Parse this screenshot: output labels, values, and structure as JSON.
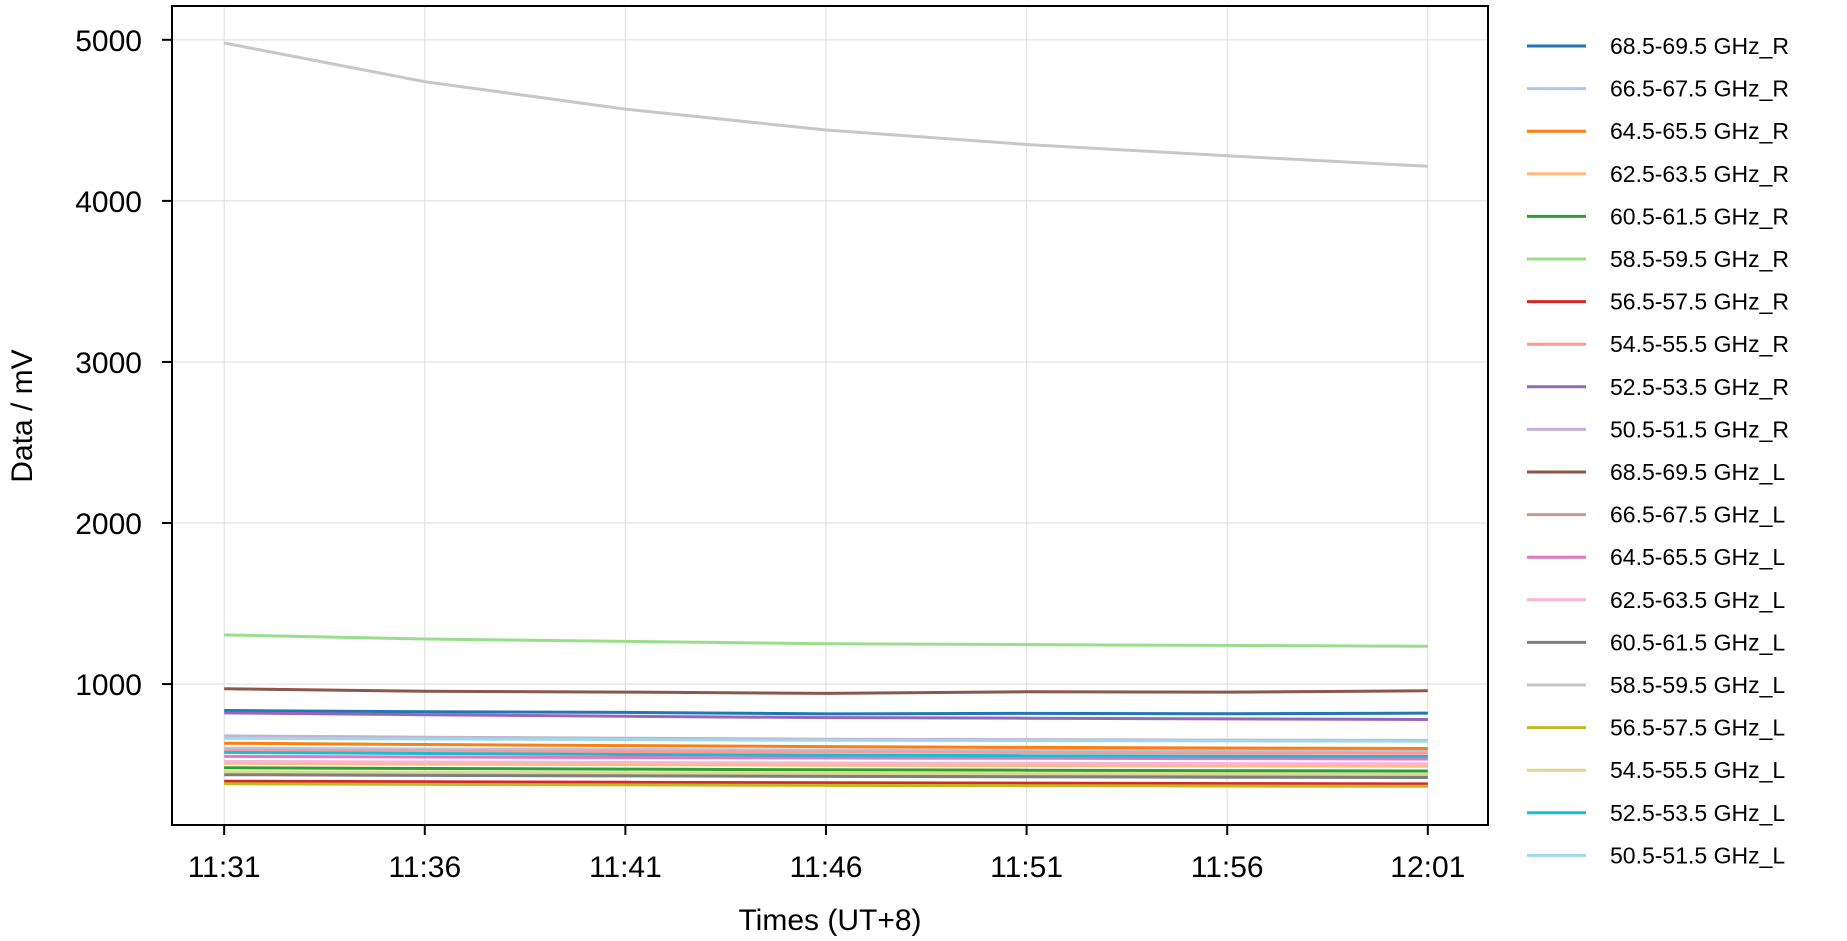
{
  "chart_data": {
    "type": "line",
    "xlabel": "Times (UT+8)",
    "ylabel": "Data / mV",
    "x": [
      "11:31",
      "11:36",
      "11:41",
      "11:46",
      "11:51",
      "11:56",
      "12:01"
    ],
    "x_ticks": [
      "11:31",
      "11:36",
      "11:41",
      "11:46",
      "11:51",
      "11:56",
      "12:01"
    ],
    "y_ticks": [
      1000,
      2000,
      3000,
      4000,
      5000
    ],
    "xlim": [
      "11:29.7",
      "12:02.5"
    ],
    "ylim": [
      125,
      5210
    ],
    "grid": true,
    "legend_position": "outside-right",
    "series": [
      {
        "name": "68.5-69.5 GHz_R",
        "color": "#1f77b4",
        "values": [
          836,
          828,
          824,
          815,
          818,
          816,
          820
        ]
      },
      {
        "name": "66.5-67.5 GHz_R",
        "color": "#aec7e8",
        "values": [
          601,
          597,
          594,
          590,
          589,
          587,
          585
        ]
      },
      {
        "name": "64.5-65.5 GHz_R",
        "color": "#ff7f0e",
        "values": [
          633,
          625,
          618,
          612,
          607,
          603,
          600
        ]
      },
      {
        "name": "62.5-63.5 GHz_R",
        "color": "#ffbb78",
        "values": [
          508,
          504,
          500,
          496,
          494,
          492,
          490
        ]
      },
      {
        "name": "60.5-61.5 GHz_R",
        "color": "#2ca02c",
        "values": [
          481,
          476,
          472,
          468,
          465,
          462,
          460
        ]
      },
      {
        "name": "58.5-59.5 GHz_R",
        "color": "#98df8a",
        "values": [
          1305,
          1280,
          1265,
          1250,
          1245,
          1240,
          1235
        ]
      },
      {
        "name": "56.5-57.5 GHz_R",
        "color": "#d62728",
        "values": [
          397,
          393,
          390,
          387,
          385,
          382,
          380
        ]
      },
      {
        "name": "54.5-55.5 GHz_R",
        "color": "#ff9896",
        "values": [
          589,
          585,
          581,
          578,
          575,
          572,
          570
        ]
      },
      {
        "name": "52.5-53.5 GHz_R",
        "color": "#9467bd",
        "values": [
          821,
          810,
          800,
          792,
          788,
          784,
          780
        ]
      },
      {
        "name": "50.5-51.5 GHz_R",
        "color": "#c5b0d5",
        "values": [
          678,
          670,
          664,
          658,
          655,
          652,
          650
        ]
      },
      {
        "name": "68.5-69.5 GHz_L",
        "color": "#8c564b",
        "values": [
          971,
          955,
          950,
          942,
          952,
          950,
          958
        ]
      },
      {
        "name": "66.5-67.5 GHz_L",
        "color": "#c49c94",
        "values": [
          450,
          446,
          443,
          440,
          438,
          436,
          435
        ]
      },
      {
        "name": "64.5-65.5 GHz_L",
        "color": "#e377c2",
        "values": [
          551,
          547,
          544,
          541,
          539,
          537,
          535
        ]
      },
      {
        "name": "62.5-63.5 GHz_L",
        "color": "#f7b6d2",
        "values": [
          520,
          516,
          513,
          510,
          508,
          506,
          505
        ]
      },
      {
        "name": "60.5-61.5 GHz_L",
        "color": "#7f7f7f",
        "values": [
          437,
          433,
          430,
          427,
          424,
          422,
          420
        ]
      },
      {
        "name": "58.5-59.5 GHz_L",
        "color": "#c7c7c7",
        "values": [
          4980,
          4740,
          4570,
          4440,
          4350,
          4280,
          4215
        ]
      },
      {
        "name": "56.5-57.5 GHz_L",
        "color": "#bcbd22",
        "values": [
          381,
          377,
          374,
          371,
          369,
          367,
          365
        ]
      },
      {
        "name": "54.5-55.5 GHz_L",
        "color": "#dbdb8d",
        "values": [
          456,
          452,
          449,
          446,
          444,
          442,
          440
        ]
      },
      {
        "name": "52.5-53.5 GHz_L",
        "color": "#17becf",
        "values": [
          576,
          569,
          563,
          558,
          555,
          552,
          550
        ]
      },
      {
        "name": "50.5-51.5 GHz_L",
        "color": "#9edae5",
        "values": [
          664,
          659,
          655,
          651,
          649,
          647,
          645
        ]
      }
    ]
  }
}
